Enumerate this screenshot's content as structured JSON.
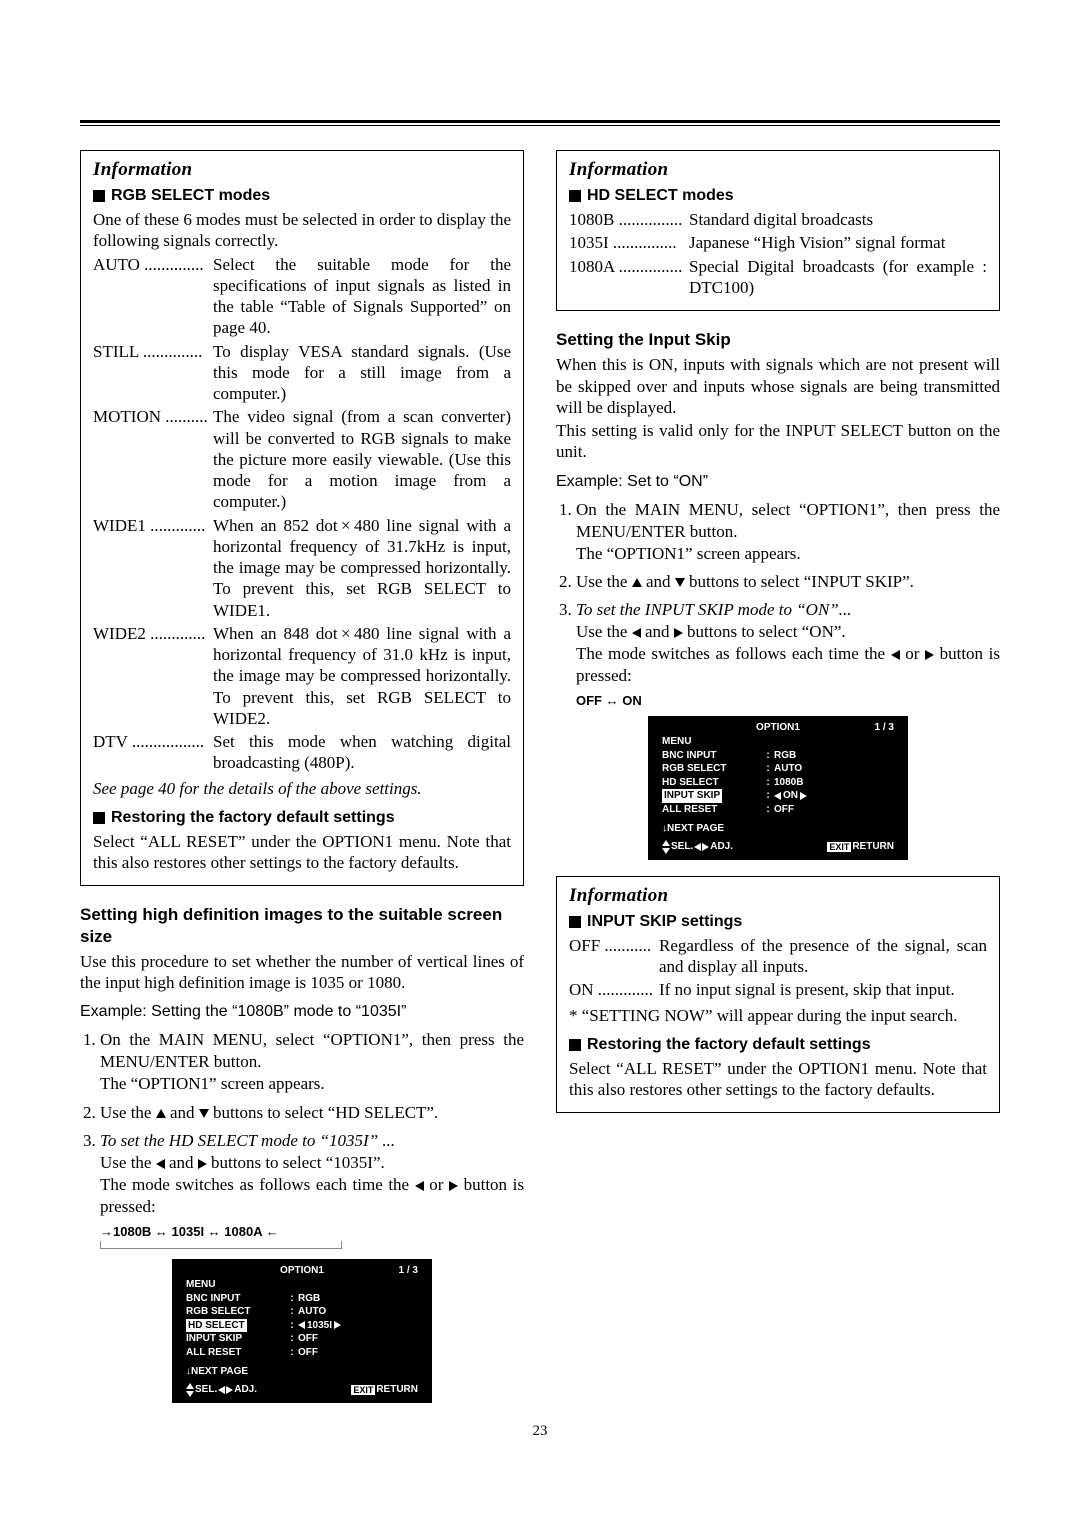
{
  "pageNumber": "23",
  "leftInfo": {
    "title": "Information",
    "rgbHead": "RGB SELECT modes",
    "rgbIntro": "One of these 6 modes must be selected in order to display the following signals correctly.",
    "modes": [
      {
        "label": "AUTO",
        "dots": " ..............",
        "body": "Select the suitable mode for the specifications of input signals as listed in the table “Table of Signals Supported” on page 40."
      },
      {
        "label": "STILL",
        "dots": " ..............",
        "body": "To display VESA standard signals. (Use this mode for a still image from a computer.)"
      },
      {
        "label": "MOTION",
        "dots": " ..........",
        "body": "The video signal (from a scan converter) will be converted to RGB signals to make the picture more easily viewable. (Use this mode for a motion image from a computer.)"
      },
      {
        "label": "WIDE1",
        "dots": " .............",
        "body": "When an 852 dot × 480 line signal with a horizontal frequency of 31.7kHz is input, the image may be compressed horizontally. To prevent this, set RGB SELECT to WIDE1."
      },
      {
        "label": "WIDE2",
        "dots": " .............",
        "body": "When an 848 dot × 480 line signal with a horizontal frequency of 31.0 kHz is input, the image may be compressed horizontally. To prevent this, set RGB SELECT to WIDE2."
      },
      {
        "label": "DTV",
        "dots": " .................",
        "body": "Set this mode when watching digital broadcasting (480P)."
      }
    ],
    "seeNote": "See page 40 for the details of the above settings.",
    "restoreHead": "Restoring the factory default settings",
    "restoreBody": "Select “ALL RESET” under the OPTION1 menu. Note that this also restores other settings to the factory defaults."
  },
  "hdSection": {
    "head": "Setting high definition images to the suitable screen size",
    "body": "Use this procedure to set whether the number of vertical lines of the input high definition image is 1035 or 1080.",
    "example": "Example: Setting the “1080B” mode to “1035I”",
    "step1a": "On the MAIN MENU, select “OPTION1”, then press the MENU/ENTER button.",
    "step1b": "The “OPTION1” screen appears.",
    "step2a": "Use the ",
    "step2b": " and ",
    "step2c": " buttons to select “HD SELECT”.",
    "step3a": "To set the HD SELECT mode to “1035I” ...",
    "step3b": "Use the ",
    "step3c": " and ",
    "step3d": " buttons to select “1035I”.",
    "step3e": "The mode switches as follows each time the ",
    "step3f": " or ",
    "step3g": " button is pressed:",
    "cycle": "→1080B ↔ 1035I ↔ 1080A ←"
  },
  "osd1": {
    "title": "OPTION1",
    "page": "1 / 3",
    "rows": [
      {
        "label": "MENU",
        "val": ""
      },
      {
        "label": "BNC INPUT",
        "val": "RGB"
      },
      {
        "label": "RGB SELECT",
        "val": "AUTO"
      },
      {
        "label": "HD SELECT",
        "val": "1035I",
        "highlight": true,
        "arrows": true
      },
      {
        "label": "INPUT SKIP",
        "val": "OFF"
      },
      {
        "label": "ALL RESET",
        "val": "OFF"
      }
    ],
    "next": "NEXT PAGE",
    "sel": "SEL.",
    "adj": "ADJ.",
    "exit": "EXIT",
    "return": "RETURN"
  },
  "rightInfo": {
    "title": "Information",
    "hdHead": "HD SELECT modes",
    "modes": [
      {
        "label": "1080B",
        "dots": " ...............",
        "body": "Standard digital broadcasts"
      },
      {
        "label": "1035I",
        "dots": " ...............",
        "body": "Japanese “High Vision” signal format"
      },
      {
        "label": "1080A",
        "dots": " ...............",
        "body": "Special Digital broadcasts (for example : DTC100)"
      }
    ]
  },
  "skipSection": {
    "head": "Setting the Input Skip",
    "p1": "When this is ON, inputs with signals which are not present will be skipped over and inputs whose signals are being transmitted will be displayed.",
    "p2": "This setting is valid only for the INPUT SELECT button on the unit.",
    "example": "Example: Set to “ON”",
    "step1a": "On the MAIN MENU, select “OPTION1”, then press the MENU/ENTER button.",
    "step1b": "The “OPTION1” screen appears.",
    "step2a": "Use the ",
    "step2b": " and ",
    "step2c": " buttons to select “INPUT SKIP”.",
    "step3a": "To set the INPUT SKIP mode to “ON”...",
    "step3b": "Use the ",
    "step3c": " and ",
    "step3d": " buttons to select “ON”.",
    "step3e": "The mode switches as follows each time the ",
    "step3f": " or ",
    "step3g": " button is pressed:",
    "cycle": "OFF ↔ ON"
  },
  "osd2": {
    "title": "OPTION1",
    "page": "1 / 3",
    "rows": [
      {
        "label": "MENU",
        "val": ""
      },
      {
        "label": "BNC INPUT",
        "val": "RGB"
      },
      {
        "label": "RGB SELECT",
        "val": "AUTO"
      },
      {
        "label": "HD SELECT",
        "val": "1080B"
      },
      {
        "label": "INPUT SKIP",
        "val": "ON",
        "highlight": true,
        "arrows": true
      },
      {
        "label": "ALL RESET",
        "val": "OFF"
      }
    ],
    "next": "NEXT PAGE",
    "sel": "SEL.",
    "adj": "ADJ.",
    "exit": "EXIT",
    "return": "RETURN"
  },
  "rightInfo2": {
    "title": "Information",
    "head": "INPUT SKIP settings",
    "modes": [
      {
        "label": "OFF",
        "dots": " ...........",
        "body": "Regardless of the presence of the signal, scan and display all inputs."
      },
      {
        "label": "ON",
        "dots": " .............",
        "body": "If no input signal is present, skip that input."
      }
    ],
    "note": "* “SETTING NOW” will appear during the input search.",
    "restoreHead": "Restoring the factory default settings",
    "restoreBody": "Select “ALL RESET” under the OPTION1 menu. Note that this also restores other settings to the factory defaults."
  }
}
